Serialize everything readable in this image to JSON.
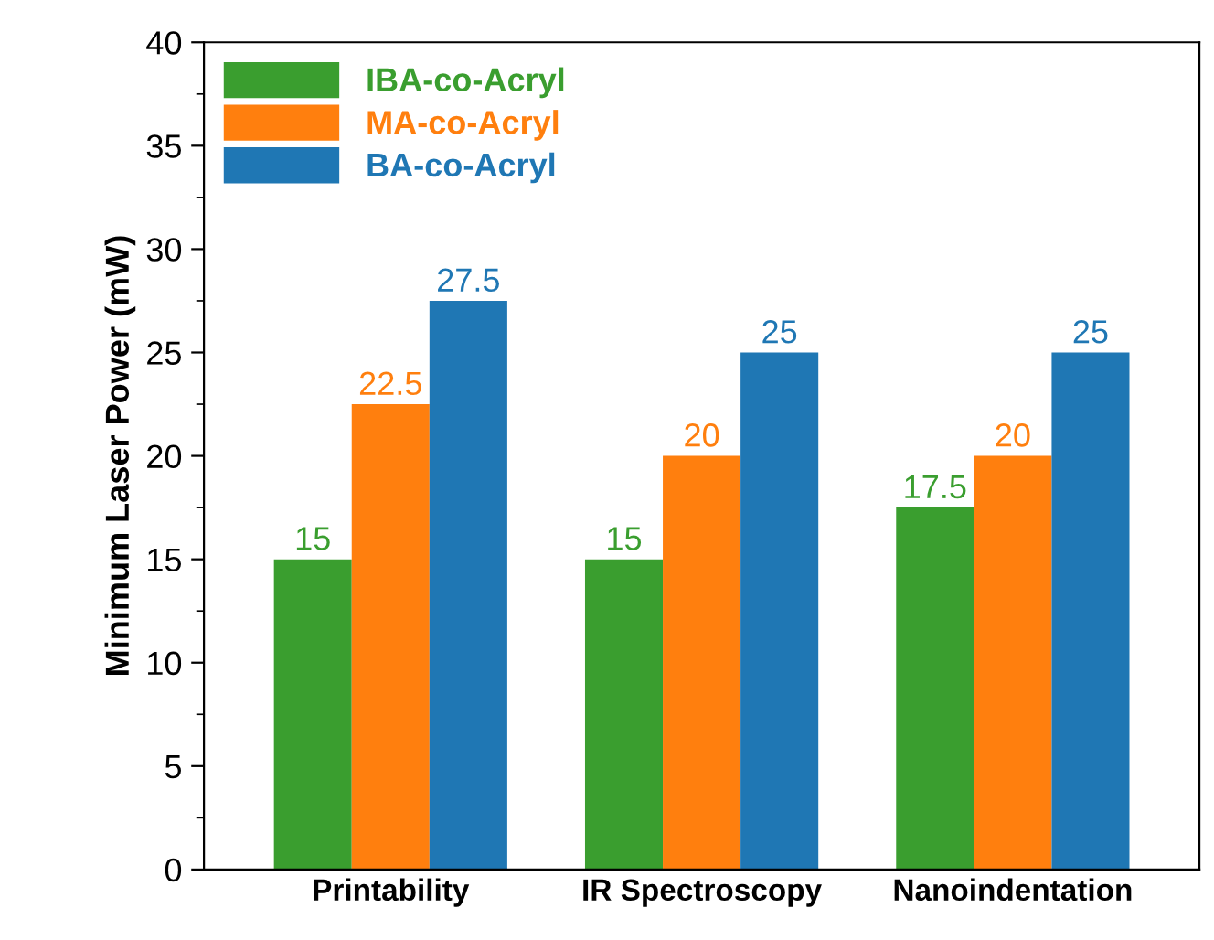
{
  "chart_data": {
    "type": "bar",
    "ylabel": "Minimum Laser Power (mW)",
    "categories": [
      "Printability",
      "IR Spectroscopy",
      "Nanoindentation"
    ],
    "series": [
      {
        "name": "IBA-co-Acryl",
        "color": "#3a9e2f",
        "values": [
          15,
          15,
          17.5
        ]
      },
      {
        "name": "MA-co-Acryl",
        "color": "#ff7f0e",
        "values": [
          22.5,
          20,
          20
        ]
      },
      {
        "name": "BA-co-Acryl",
        "color": "#1f77b4",
        "values": [
          27.5,
          25,
          25
        ]
      }
    ],
    "ylim": [
      0,
      40
    ],
    "yticks": [
      0,
      5,
      10,
      15,
      20,
      25,
      30,
      35,
      40
    ],
    "data_labels": true,
    "legend": "top left",
    "grid": false
  }
}
